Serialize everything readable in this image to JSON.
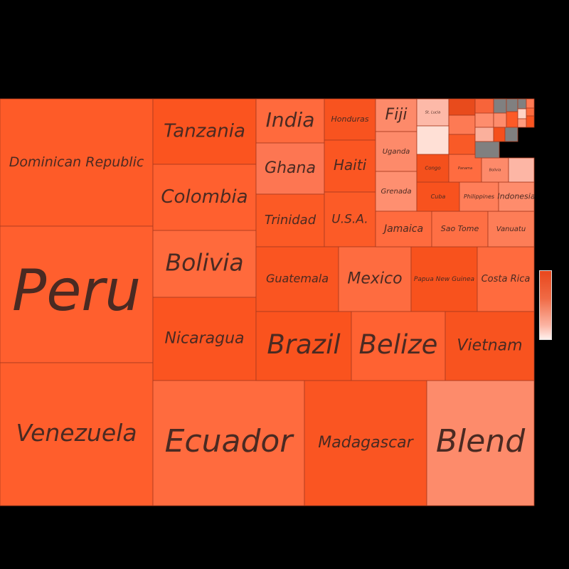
{
  "chart_data": {
    "type": "treemap",
    "title": "",
    "colors": {
      "high": "#e8471c",
      "mid": "#f47a52",
      "low": "#fde0d6",
      "missing": "#808080",
      "border": "#a83a1e",
      "background": "#000000"
    },
    "items": [
      {
        "name": "Dominican Republic",
        "color": "#fe5b28"
      },
      {
        "name": "Peru",
        "color": "#ff5f2e"
      },
      {
        "name": "Venezuela",
        "color": "#ff5e2c"
      },
      {
        "name": "Tanzania",
        "color": "#fb541f"
      },
      {
        "name": "Colombia",
        "color": "#ff602f"
      },
      {
        "name": "Bolivia",
        "color": "#ff6a3c"
      },
      {
        "name": "Nicaragua",
        "color": "#fb5420"
      },
      {
        "name": "Ecuador",
        "color": "#ff6b3e"
      },
      {
        "name": "Madagascar",
        "color": "#fa5522"
      },
      {
        "name": "Blend",
        "color": "#fd8b6b"
      },
      {
        "name": "India",
        "color": "#ff6a3d"
      },
      {
        "name": "Ghana",
        "color": "#fd7652"
      },
      {
        "name": "Trinidad",
        "color": "#fc5a25"
      },
      {
        "name": "Honduras",
        "color": "#f8531f"
      },
      {
        "name": "Haiti",
        "color": "#fb5622"
      },
      {
        "name": "U.S.A.",
        "color": "#fc5b27"
      },
      {
        "name": "Guatemala",
        "color": "#fa5521"
      },
      {
        "name": "Mexico",
        "color": "#fe6c40"
      },
      {
        "name": "Papua New Guinea",
        "color": "#f8521d"
      },
      {
        "name": "Costa Rica",
        "color": "#ff6b3e"
      },
      {
        "name": "Brazil",
        "color": "#fa531e"
      },
      {
        "name": "Belize",
        "color": "#ff6232"
      },
      {
        "name": "Vietnam",
        "color": "#f8531f"
      },
      {
        "name": "Fiji",
        "color": "#fd8a6a"
      },
      {
        "name": "Uganda",
        "color": "#fd8a6a"
      },
      {
        "name": "Grenada",
        "color": "#fe8f70"
      },
      {
        "name": "Jamaica",
        "color": "#ff6b3e"
      },
      {
        "name": "Sao Tome",
        "color": "#fe6f44"
      },
      {
        "name": "Vanuatu",
        "color": "#fd7d57"
      },
      {
        "name": "Cuba",
        "color": "#f8521e"
      },
      {
        "name": "Philippines",
        "color": "#ff7e59"
      },
      {
        "name": "Indonesia",
        "color": "#fe8c6c"
      },
      {
        "name": "Congo",
        "color": "#f4501c"
      },
      {
        "name": "Panama",
        "color": "#ff6c40"
      },
      {
        "name": "Bolivia",
        "color": "#fd8a6a"
      },
      {
        "name": "St. Lucia",
        "color": "#fdb9a8"
      },
      {
        "name": "",
        "color": "#e84b1c"
      },
      {
        "name": "",
        "color": "#f7643a"
      },
      {
        "name": "",
        "color": "#fd7a54"
      },
      {
        "name": "",
        "color": "#fe8d6d"
      },
      {
        "name": "",
        "color": "#ffa085"
      },
      {
        "name": "",
        "color": "#ffe0d6"
      },
      {
        "name": "",
        "color": "#f95a27"
      },
      {
        "name": "",
        "color": "#fbb09c"
      },
      {
        "name": "",
        "color": "#808080"
      },
      {
        "name": "",
        "color": "#808080"
      },
      {
        "name": "",
        "color": "#808080"
      },
      {
        "name": "",
        "color": "#808080"
      },
      {
        "name": "",
        "color": "#ff7a54"
      },
      {
        "name": "",
        "color": "#fd8c6c"
      },
      {
        "name": "",
        "color": "#fc5a27"
      },
      {
        "name": "",
        "color": "#ffd3c6"
      },
      {
        "name": "",
        "color": "#fe6b3e"
      },
      {
        "name": "",
        "color": "#f5501c"
      },
      {
        "name": "",
        "color": "#808080"
      },
      {
        "name": "",
        "color": "#ff9b7e"
      },
      {
        "name": "",
        "color": "#fa5420"
      },
      {
        "name": "",
        "color": "#fdb6a5"
      }
    ],
    "colorbar": {
      "position": "right"
    }
  }
}
